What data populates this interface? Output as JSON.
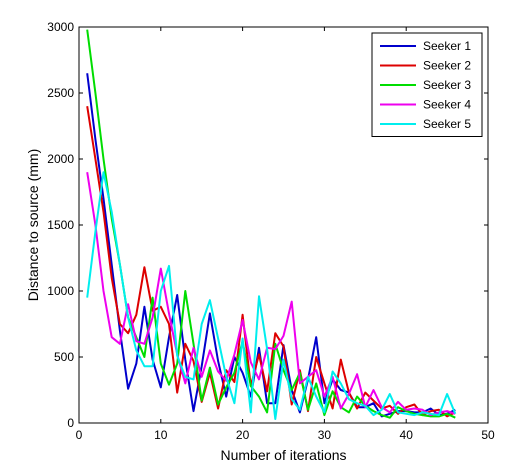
{
  "chart_data": {
    "type": "line",
    "title": "",
    "xlabel": "Number of iterations",
    "ylabel": "Distance to source (mm)",
    "xlim": [
      0,
      50
    ],
    "ylim": [
      0,
      3000
    ],
    "xticks": [
      0,
      10,
      20,
      30,
      40,
      50
    ],
    "yticks": [
      0,
      500,
      1000,
      1500,
      2000,
      2500,
      3000
    ],
    "grid": false,
    "legend_position": "top-right",
    "series": [
      {
        "name": "Seeker 1",
        "color": "#0000cc",
        "x": [
          1,
          2,
          3,
          4,
          5,
          6,
          7,
          8,
          9,
          10,
          11,
          12,
          13,
          14,
          15,
          16,
          17,
          18,
          19,
          20,
          21,
          22,
          23,
          24,
          25,
          26,
          27,
          28,
          29,
          30,
          31,
          32,
          33,
          34,
          35,
          36,
          37,
          38,
          39,
          40,
          41,
          42,
          43,
          44,
          45,
          46
        ],
        "y": [
          2650,
          2150,
          1700,
          1200,
          700,
          260,
          450,
          880,
          480,
          270,
          650,
          970,
          480,
          90,
          430,
          830,
          470,
          200,
          500,
          380,
          200,
          570,
          150,
          150,
          590,
          250,
          80,
          330,
          650,
          150,
          330,
          250,
          230,
          120,
          120,
          150,
          50,
          70,
          90,
          90,
          80,
          80,
          110,
          60,
          70,
          100
        ]
      },
      {
        "name": "Seeker 2",
        "color": "#dd0000",
        "x": [
          1,
          2,
          3,
          4,
          5,
          6,
          7,
          8,
          9,
          10,
          11,
          12,
          13,
          14,
          15,
          16,
          17,
          18,
          19,
          20,
          21,
          22,
          23,
          24,
          25,
          26,
          27,
          28,
          29,
          30,
          31,
          32,
          33,
          34,
          35,
          36,
          37,
          38,
          39,
          40,
          41,
          42,
          43,
          44,
          45,
          46
        ],
        "y": [
          2400,
          2000,
          1600,
          1100,
          750,
          680,
          820,
          1180,
          850,
          880,
          750,
          230,
          600,
          470,
          160,
          380,
          110,
          400,
          310,
          820,
          280,
          520,
          240,
          680,
          580,
          140,
          400,
          90,
          500,
          300,
          110,
          480,
          230,
          110,
          230,
          170,
          110,
          130,
          70,
          120,
          140,
          60,
          90,
          100,
          50,
          80
        ]
      },
      {
        "name": "Seeker 3",
        "color": "#00dd00",
        "x": [
          1,
          2,
          3,
          4,
          5,
          6,
          7,
          8,
          9,
          10,
          11,
          12,
          13,
          14,
          15,
          16,
          17,
          18,
          19,
          20,
          21,
          22,
          23,
          24,
          25,
          26,
          27,
          28,
          29,
          30,
          31,
          32,
          33,
          34,
          35,
          36,
          37,
          38,
          39,
          40,
          41,
          42,
          43,
          44,
          45,
          46
        ],
        "y": [
          2980,
          2500,
          2000,
          1550,
          1200,
          800,
          650,
          500,
          950,
          450,
          290,
          450,
          1000,
          600,
          170,
          420,
          140,
          270,
          380,
          620,
          280,
          200,
          80,
          600,
          400,
          250,
          380,
          100,
          300,
          60,
          240,
          120,
          80,
          200,
          130,
          90,
          60,
          40,
          120,
          90,
          70,
          60,
          50,
          50,
          70,
          40
        ]
      },
      {
        "name": "Seeker 4",
        "color": "#ee00ee",
        "x": [
          1,
          2,
          3,
          4,
          5,
          6,
          7,
          8,
          9,
          10,
          11,
          12,
          13,
          14,
          15,
          16,
          17,
          18,
          19,
          20,
          21,
          22,
          23,
          24,
          25,
          26,
          27,
          28,
          29,
          30,
          31,
          32,
          33,
          34,
          35,
          36,
          37,
          38,
          39,
          40,
          41,
          42,
          43,
          44,
          45,
          46
        ],
        "y": [
          1900,
          1500,
          1000,
          650,
          600,
          900,
          620,
          600,
          800,
          1170,
          830,
          520,
          300,
          570,
          350,
          550,
          390,
          320,
          520,
          780,
          460,
          330,
          570,
          560,
          660,
          920,
          300,
          350,
          400,
          200,
          350,
          110,
          220,
          370,
          120,
          250,
          120,
          80,
          160,
          100,
          110,
          100,
          60,
          80,
          90,
          70
        ]
      },
      {
        "name": "Seeker 5",
        "color": "#00eeee",
        "x": [
          1,
          2,
          3,
          4,
          5,
          6,
          7,
          8,
          9,
          10,
          11,
          12,
          13,
          14,
          15,
          16,
          17,
          18,
          19,
          20,
          21,
          22,
          23,
          24,
          25,
          26,
          27,
          28,
          29,
          30,
          31,
          32,
          33,
          34,
          35,
          36,
          37,
          38,
          39,
          40,
          41,
          42,
          43,
          44,
          45,
          46
        ],
        "y": [
          950,
          1450,
          1900,
          1600,
          1200,
          800,
          550,
          430,
          430,
          1000,
          1190,
          510,
          350,
          330,
          750,
          930,
          640,
          350,
          150,
          640,
          80,
          960,
          560,
          30,
          480,
          180,
          100,
          350,
          200,
          80,
          390,
          300,
          180,
          150,
          130,
          60,
          100,
          220,
          80,
          70,
          60,
          80,
          70,
          60,
          220,
          70
        ]
      }
    ]
  }
}
